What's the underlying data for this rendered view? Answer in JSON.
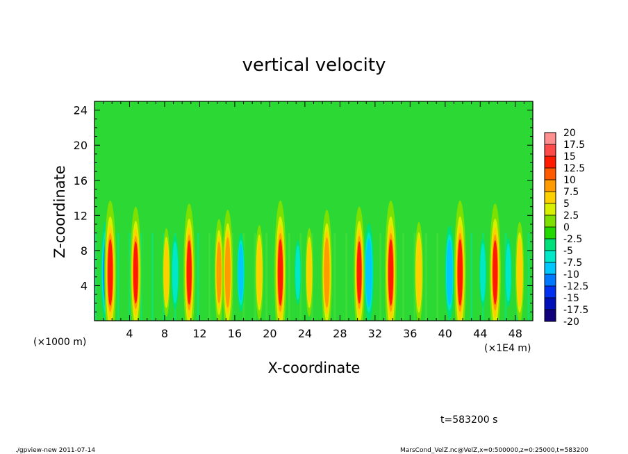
{
  "chart_data": {
    "type": "heatmap",
    "title": "vertical velocity",
    "xlabel": "X-coordinate",
    "ylabel": "Z-coordinate",
    "x_unit_left": "(×1000 m)",
    "x_unit_right": "(×1E4 m)",
    "xlim": [
      0,
      50
    ],
    "ylim": [
      0,
      25
    ],
    "x_ticks": [
      4,
      8,
      12,
      16,
      20,
      24,
      28,
      32,
      36,
      40,
      44,
      48
    ],
    "x_tick_labels": [
      "4",
      "8",
      "12",
      "16",
      "20",
      "24",
      "28",
      "32",
      "36",
      "40",
      "44",
      "48"
    ],
    "y_ticks": [
      4,
      8,
      12,
      16,
      20,
      24
    ],
    "y_tick_labels": [
      "4",
      "8",
      "12",
      "16",
      "20",
      "24"
    ],
    "colorbar": {
      "levels": [
        "20",
        "17.5",
        "15",
        "12.5",
        "10",
        "7.5",
        "5",
        "2.5",
        "0",
        "-2.5",
        "-5",
        "-7.5",
        "-10",
        "-12.5",
        "-15",
        "-17.5",
        "-20"
      ],
      "colors": [
        "#ff9090",
        "#ff4a4a",
        "#ff1a00",
        "#ff5a00",
        "#ff9a00",
        "#ffd000",
        "#d8ef00",
        "#7ee000",
        "#22d800",
        "#00e07a",
        "#00e8c8",
        "#00c8ff",
        "#0078ff",
        "#0030f0",
        "#0010b8",
        "#10007a",
        "#6000b0"
      ]
    },
    "updrafts": [
      {
        "x": 1.8,
        "amp": 1.0
      },
      {
        "x": 4.7,
        "amp": 0.9
      },
      {
        "x": 8.2,
        "amp": 0.55
      },
      {
        "x": 10.8,
        "amp": 0.95
      },
      {
        "x": 14.2,
        "amp": 0.7
      },
      {
        "x": 15.2,
        "amp": 0.85
      },
      {
        "x": 18.8,
        "amp": 0.6
      },
      {
        "x": 21.2,
        "amp": 1.0
      },
      {
        "x": 24.5,
        "amp": 0.55
      },
      {
        "x": 26.5,
        "amp": 0.85
      },
      {
        "x": 30.2,
        "amp": 0.9
      },
      {
        "x": 33.8,
        "amp": 1.0
      },
      {
        "x": 37.0,
        "amp": 0.65
      },
      {
        "x": 41.7,
        "amp": 1.0
      },
      {
        "x": 45.7,
        "amp": 0.95
      },
      {
        "x": 48.5,
        "amp": 0.65
      }
    ],
    "downdrafts": [
      {
        "x": 1.3,
        "amp": 0.85
      },
      {
        "x": 9.2,
        "amp": 0.55
      },
      {
        "x": 16.7,
        "amp": 0.6
      },
      {
        "x": 23.2,
        "amp": 0.45
      },
      {
        "x": 31.3,
        "amp": 0.8
      },
      {
        "x": 40.5,
        "amp": 0.75
      },
      {
        "x": 44.3,
        "amp": 0.5
      },
      {
        "x": 47.2,
        "amp": 0.5
      }
    ]
  },
  "time_label": "t=583200 s",
  "footer": {
    "left": "./gpview-new   2011-07-14",
    "right": "MarsCond_VelZ.nc@VelZ,x=0:500000,z=0:25000,t=583200"
  }
}
